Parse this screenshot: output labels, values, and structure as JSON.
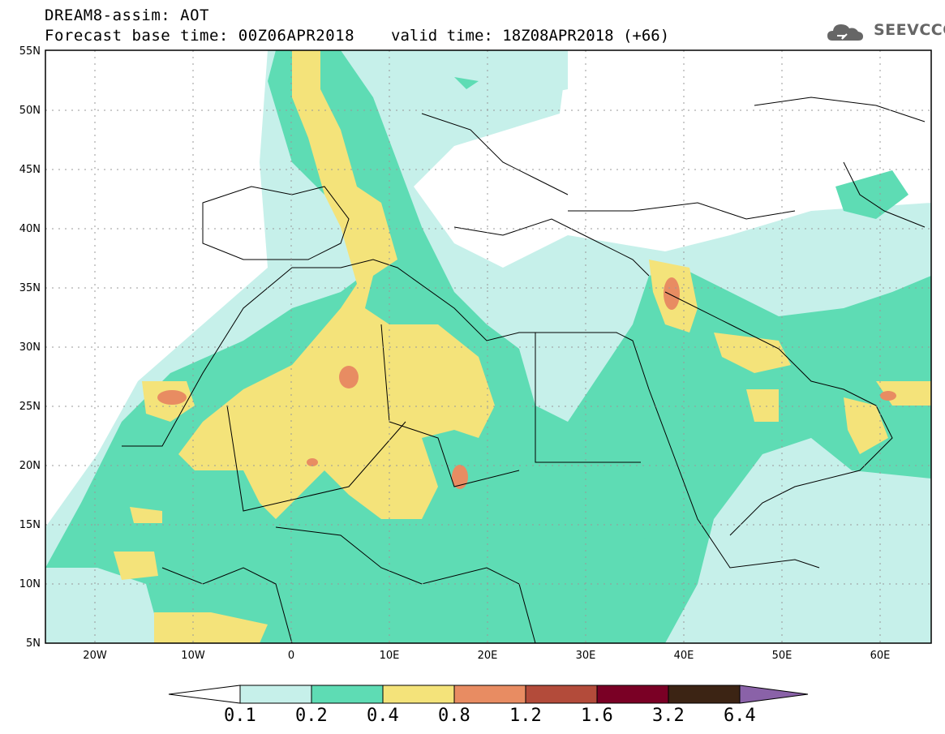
{
  "header": {
    "model_title": "DREAM8-assim: AOT",
    "base_time": "Forecast base time: 00Z06APR2018",
    "valid_time": "valid time: 18Z08APR2018 (+66)"
  },
  "logo": {
    "text": "SEEVCCC",
    "icon": "cloud-icon",
    "color": "#666666"
  },
  "map": {
    "lat_labels": [
      "55N",
      "50N",
      "45N",
      "40N",
      "35N",
      "30N",
      "25N",
      "20N",
      "15N",
      "10N",
      "5N"
    ],
    "lon_labels": [
      "20W",
      "10W",
      "0",
      "10E",
      "20E",
      "30E",
      "40E",
      "50E",
      "60E"
    ],
    "extent": {
      "lon": [
        -25,
        65
      ],
      "lat": [
        5,
        55
      ]
    }
  },
  "colorbar": {
    "levels": [
      "0.1",
      "0.2",
      "0.4",
      "0.8",
      "1.2",
      "1.6",
      "3.2",
      "6.4"
    ],
    "colors": [
      "#ffffff",
      "#c6f0ea",
      "#5edcb4",
      "#f4e37a",
      "#e88c62",
      "#b34b3a",
      "#7a0025",
      "#3c2414",
      "#8a62a8"
    ]
  },
  "chart_data": {
    "type": "heatmap",
    "variable": "AOT",
    "x_range": [
      -25,
      65
    ],
    "y_range": [
      5,
      55
    ],
    "levels": [
      0.1,
      0.2,
      0.4,
      0.8,
      1.2,
      1.6,
      3.2,
      6.4
    ]
  }
}
